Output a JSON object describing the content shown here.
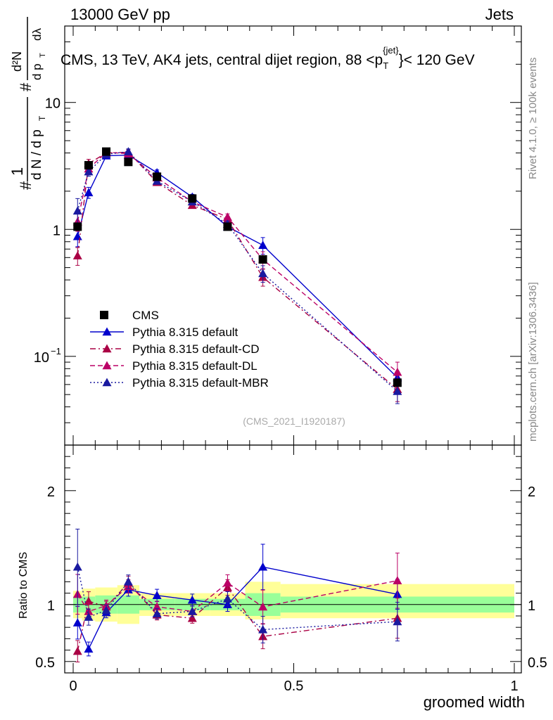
{
  "header": {
    "left": "13000 GeV pp",
    "right": "Jets"
  },
  "side_labels": {
    "rivet": "Rivet 4.1.0, ≥ 100k events",
    "mcplots": "mcplots.cern.ch [arXiv:1306.3436]"
  },
  "chart_data": {
    "type": "line",
    "title": "CMS, 13 TeV, AK4 jets, central dijet region, 88 <p_T^{jet}< 120 GeV",
    "analysis_id": "(CMS_2021_I1920187)",
    "xlabel": "groomed width",
    "ylabel": "1/dN/dp_T # d²N/dp_T dλ",
    "ratio_ylabel": "Ratio to CMS",
    "x_range": [
      0,
      1
    ],
    "y_range_log": [
      0.02,
      40
    ],
    "ratio_range": [
      0.4,
      2.4
    ],
    "x_ticks": [
      "0",
      "0.5",
      "1"
    ],
    "y_ticks": [
      "10^{-1}",
      "1",
      "10"
    ],
    "ratio_ticks": [
      "0.5",
      "1",
      "2"
    ],
    "x": [
      0.01,
      0.035,
      0.075,
      0.125,
      0.19,
      0.27,
      0.35,
      0.43,
      0.735
    ],
    "bin_edges": [
      0,
      0.02,
      0.05,
      0.1,
      0.15,
      0.23,
      0.31,
      0.39,
      0.47,
      1.0
    ],
    "data": {
      "name": "CMS",
      "values": [
        1.05,
        3.2,
        4.1,
        3.4,
        2.6,
        1.75,
        1.05,
        0.58,
        0.062
      ],
      "band_green": [
        [
          0.93,
          1.07
        ],
        [
          0.93,
          1.07
        ],
        [
          0.92,
          1.08
        ],
        [
          0.92,
          1.08
        ],
        [
          0.95,
          1.05
        ],
        [
          0.95,
          1.05
        ],
        [
          0.95,
          1.05
        ],
        [
          0.9,
          1.1
        ],
        [
          0.93,
          1.07
        ]
      ],
      "band_yellow": [
        [
          0.88,
          1.12
        ],
        [
          0.86,
          1.14
        ],
        [
          0.85,
          1.15
        ],
        [
          0.83,
          1.17
        ],
        [
          0.9,
          1.1
        ],
        [
          0.9,
          1.1
        ],
        [
          0.9,
          1.1
        ],
        [
          0.87,
          1.2
        ],
        [
          0.88,
          1.18
        ]
      ]
    },
    "series": [
      {
        "name": "Pythia 8.315 default",
        "color": "#0000cc",
        "dash": "",
        "values": [
          0.88,
          1.95,
          3.8,
          3.85,
          2.8,
          1.8,
          1.05,
          0.75,
          0.068
        ],
        "ratio": [
          0.84,
          0.61,
          0.93,
          1.13,
          1.08,
          1.04,
          1.0,
          1.33,
          1.09
        ],
        "err": [
          0.17,
          0.1,
          0.05,
          0.05,
          0.05,
          0.05,
          0.06,
          0.15,
          0.12
        ]
      },
      {
        "name": "Pythia 8.315 default-CD",
        "color": "#aa0044",
        "dash": "8,4,2,4",
        "values": [
          0.62,
          3.3,
          4.0,
          4.05,
          2.35,
          1.55,
          1.2,
          0.42,
          0.055
        ],
        "ratio": [
          0.59,
          1.03,
          0.98,
          1.19,
          0.91,
          0.88,
          1.15,
          0.72,
          0.88
        ],
        "err": [
          0.16,
          0.08,
          0.05,
          0.05,
          0.05,
          0.05,
          0.06,
          0.15,
          0.2
        ]
      },
      {
        "name": "Pythia 8.315 default-DL",
        "color": "#bb0066",
        "dash": "7,4",
        "values": [
          1.15,
          3.0,
          4.05,
          3.95,
          2.55,
          1.65,
          1.25,
          0.58,
          0.075
        ],
        "ratio": [
          1.09,
          0.94,
          0.99,
          1.16,
          0.98,
          0.94,
          1.19,
          0.98,
          1.21
        ],
        "err": [
          0.16,
          0.08,
          0.05,
          0.05,
          0.05,
          0.05,
          0.06,
          0.15,
          0.2
        ]
      },
      {
        "name": "Pythia 8.315 default-MBR",
        "color": "#1a1aa0",
        "dash": "2,3",
        "values": [
          1.4,
          2.85,
          3.9,
          4.1,
          2.4,
          1.65,
          1.1,
          0.45,
          0.053
        ],
        "ratio": [
          1.33,
          0.89,
          0.95,
          1.2,
          0.92,
          0.94,
          1.05,
          0.78,
          0.85
        ],
        "err": [
          0.25,
          0.08,
          0.05,
          0.05,
          0.05,
          0.05,
          0.06,
          0.15,
          0.2
        ]
      }
    ]
  }
}
